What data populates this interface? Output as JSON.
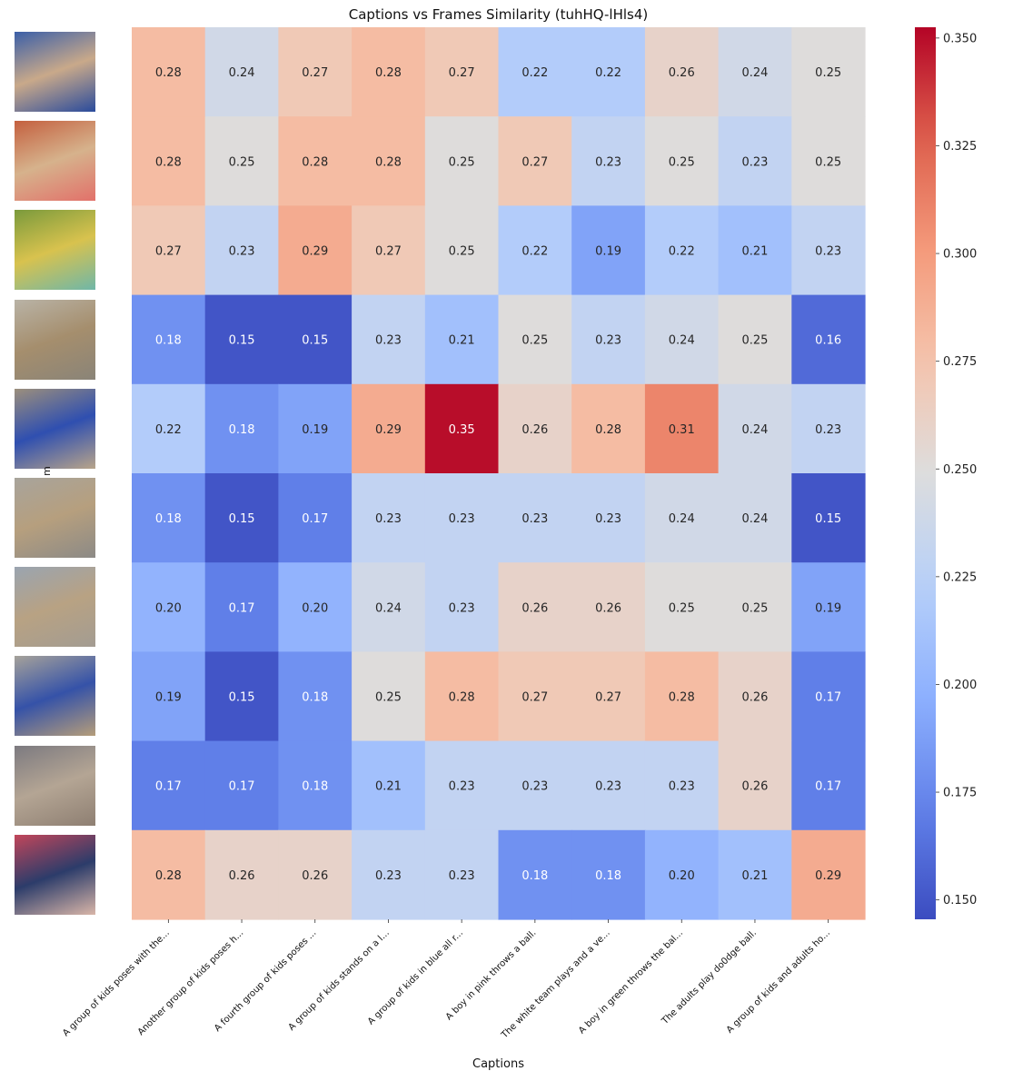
{
  "chart_data": {
    "type": "heatmap",
    "title": "Captions vs Frames Similarity (tuhHQ-lHls4)",
    "xlabel": "Captions",
    "ylabel": "",
    "ylabel_fragment": "m",
    "colormap": "coolwarm",
    "colorbar": {
      "min": 0.1455,
      "max": 0.3525,
      "ticks": [
        "0.150",
        "0.175",
        "0.200",
        "0.225",
        "0.250",
        "0.275",
        "0.300",
        "0.325",
        "0.350"
      ]
    },
    "x_tick_labels": [
      "A group of kids poses with the...",
      "Another group of kids poses h...",
      "A fourth group of kids poses ...",
      "A group of kids stands on a l...",
      "A group of kids in blue all r...",
      "A boy in pink throws a ball.",
      "The white team plays and a ve...",
      "A boy in green throws the bal...",
      "The adults play do0dge ball.",
      "A group of kids and adults ho..."
    ],
    "rows": [
      {
        "frame_colors": [
          "#3b5fa8",
          "#c9a98a",
          "#2a4b9c"
        ],
        "values": [
          0.28,
          0.24,
          0.27,
          0.28,
          0.27,
          0.22,
          0.22,
          0.26,
          0.24,
          0.25
        ]
      },
      {
        "frame_colors": [
          "#c4603f",
          "#d6b28c",
          "#e2716a"
        ],
        "values": [
          0.28,
          0.25,
          0.28,
          0.28,
          0.25,
          0.27,
          0.23,
          0.25,
          0.23,
          0.25
        ]
      },
      {
        "frame_colors": [
          "#7a9a3c",
          "#d8c24e",
          "#6fb7a8"
        ],
        "values": [
          0.27,
          0.23,
          0.29,
          0.27,
          0.25,
          0.22,
          0.19,
          0.22,
          0.21,
          0.23
        ]
      },
      {
        "frame_colors": [
          "#b9b3a6",
          "#a58e6d",
          "#8a8478"
        ],
        "values": [
          0.18,
          0.15,
          0.15,
          0.23,
          0.21,
          0.25,
          0.23,
          0.24,
          0.25,
          0.16
        ]
      },
      {
        "frame_colors": [
          "#9c8f7c",
          "#2f4fb0",
          "#b8a48a"
        ],
        "values": [
          0.22,
          0.18,
          0.19,
          0.29,
          0.35,
          0.26,
          0.28,
          0.31,
          0.24,
          0.23
        ]
      },
      {
        "frame_colors": [
          "#a8a49c",
          "#b69f7e",
          "#8c8a86"
        ],
        "values": [
          0.18,
          0.15,
          0.17,
          0.23,
          0.23,
          0.23,
          0.23,
          0.24,
          0.24,
          0.15
        ]
      },
      {
        "frame_colors": [
          "#9aa4b0",
          "#b8a283",
          "#a39c92"
        ],
        "values": [
          0.2,
          0.17,
          0.2,
          0.24,
          0.23,
          0.26,
          0.26,
          0.25,
          0.25,
          0.19
        ]
      },
      {
        "frame_colors": [
          "#a6a29a",
          "#3552a8",
          "#b59d7a"
        ],
        "values": [
          0.19,
          0.15,
          0.18,
          0.25,
          0.28,
          0.27,
          0.27,
          0.28,
          0.26,
          0.17
        ]
      },
      {
        "frame_colors": [
          "#7c7a80",
          "#b4a594",
          "#8e7f72"
        ],
        "values": [
          0.17,
          0.17,
          0.18,
          0.21,
          0.23,
          0.23,
          0.23,
          0.23,
          0.26,
          0.17
        ]
      },
      {
        "frame_colors": [
          "#c2465a",
          "#2c3c6a",
          "#d9b6a8"
        ],
        "values": [
          0.28,
          0.26,
          0.26,
          0.23,
          0.23,
          0.18,
          0.18,
          0.2,
          0.21,
          0.29
        ]
      }
    ]
  }
}
